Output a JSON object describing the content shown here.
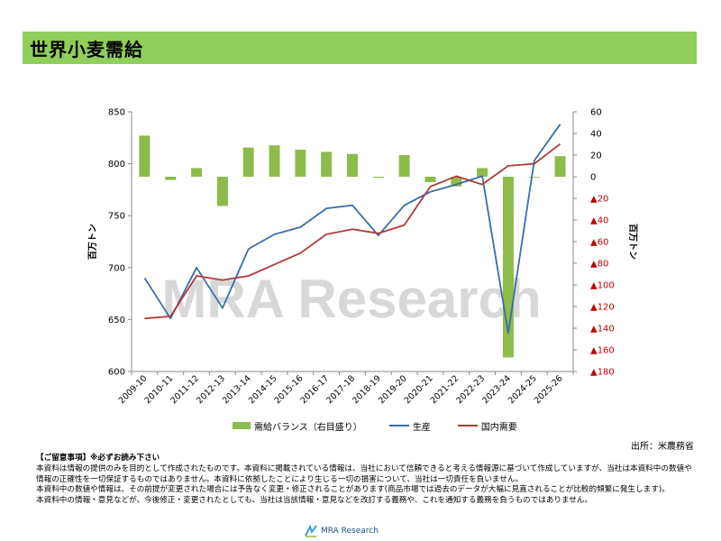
{
  "page": {
    "title": "世界小麦需給",
    "source": "出所：米農務省",
    "watermark": "MRA Research",
    "footer_brand": "MRA Research"
  },
  "notes": {
    "heading": "【ご留意事項】※必ずお読み下さい",
    "lines": [
      "本資料は情報の提供のみを目的として作成されたものです。本資料に掲載されている情報は、当社において信頼できると考える情報源に基づいて作成していますが、当社は本資料中の数値や情報の正確性を一切保証するものではありません。本資料に依拠したことにより生じる一切の損害について、当社は一切責任を負いません。",
      "本資料中の数値や情報は、その前提が変更された場合には予告なく変更・修正されることがあります(商品市場では過去のデータが大幅に見直されることが比較的頻繁に発生します)。",
      "本資料中の情報・意見などが、今後修正・変更されたとしても、当社は当該情報・意見などを改訂する義務や、これを通知する義務を負うものではありません。"
    ]
  },
  "chart_data": {
    "type": "bar+line",
    "categories": [
      "2009-10",
      "2010-11",
      "2011-12",
      "2012-13",
      "2013-14",
      "2014-15",
      "2015-16",
      "2016-17",
      "2017-18",
      "2018-19",
      "2019-20",
      "2020-21",
      "2021-22",
      "2022-23",
      "2023-24",
      "2024-25",
      "2025-26"
    ],
    "left_axis": {
      "label": "百万トン",
      "range": [
        600,
        850
      ],
      "ticks": [
        "600",
        "650",
        "700",
        "750",
        "800",
        "850"
      ]
    },
    "right_axis": {
      "label": "百万トン",
      "range": [
        -180,
        60
      ],
      "ticks": [
        {
          "value": 60,
          "label": "60"
        },
        {
          "value": 40,
          "label": "40"
        },
        {
          "value": 20,
          "label": "20"
        },
        {
          "value": 0,
          "label": "0"
        },
        {
          "value": -20,
          "label": "▲20"
        },
        {
          "value": -40,
          "label": "▲40"
        },
        {
          "value": -60,
          "label": "▲60"
        },
        {
          "value": -80,
          "label": "▲80"
        },
        {
          "value": -100,
          "label": "▲100"
        },
        {
          "value": -120,
          "label": "▲120"
        },
        {
          "value": -140,
          "label": "▲140"
        },
        {
          "value": -160,
          "label": "▲160"
        },
        {
          "value": -180,
          "label": "▲180"
        }
      ],
      "negative_color": "#c00000"
    },
    "series": [
      {
        "name": "需給バランス（右目盛り）",
        "kind": "bar",
        "axis": "right",
        "color": "#8dbb4c",
        "values": [
          38,
          -3,
          8,
          -27,
          27,
          29,
          25,
          23,
          21,
          -1,
          20,
          -5,
          -9,
          8,
          -167,
          0,
          19
        ]
      },
      {
        "name": "生産",
        "kind": "line",
        "axis": "left",
        "color": "#3a6ea5",
        "values": [
          690,
          651,
          700,
          661,
          718,
          732,
          739,
          757,
          760,
          731,
          760,
          773,
          780,
          788,
          637,
          803,
          838
        ]
      },
      {
        "name": "国内需要",
        "kind": "line",
        "axis": "left",
        "color": "#b03a3a",
        "values": [
          651,
          653,
          692,
          688,
          692,
          703,
          714,
          732,
          737,
          733,
          741,
          778,
          788,
          780,
          798,
          800,
          819
        ]
      }
    ],
    "grid": false,
    "legend_position": "bottom"
  }
}
